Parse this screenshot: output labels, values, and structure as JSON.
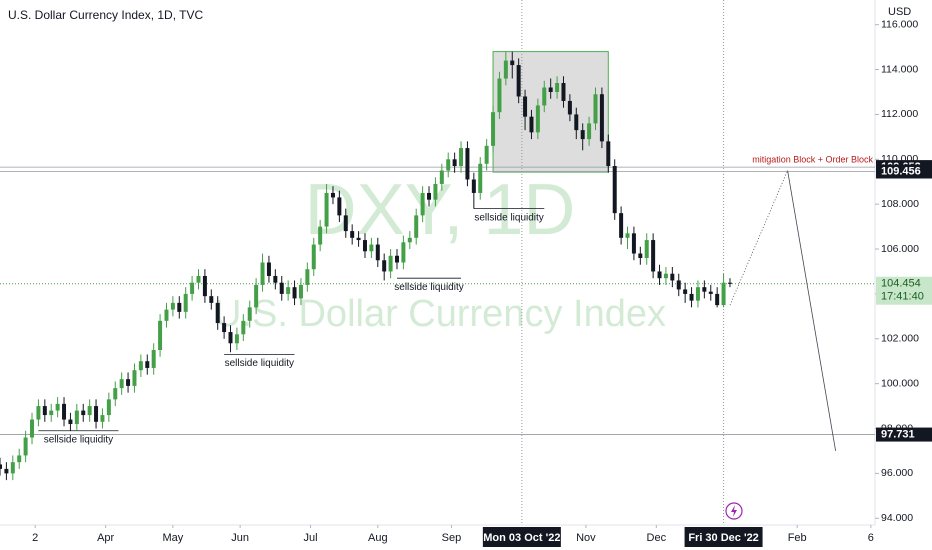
{
  "chart_data": {
    "type": "candlestick",
    "title": "U.S. Dollar Currency Index, 1D, TVC",
    "watermark": [
      "DXY, 1D",
      "U.S. Dollar Currency Index"
    ],
    "currency": "USD",
    "up_color": "#43a047",
    "down_color": "#131722",
    "x": [
      0,
      2,
      4,
      6,
      8,
      10,
      12,
      14,
      16,
      18,
      20,
      22,
      24,
      26,
      28,
      30,
      32,
      34,
      36,
      38,
      40,
      42,
      44,
      46,
      48,
      50,
      52,
      54,
      56,
      58,
      60,
      62,
      64,
      66,
      68,
      70,
      72,
      74,
      76,
      78,
      80,
      82,
      84,
      86,
      88,
      90,
      92,
      94,
      96,
      98,
      100,
      102,
      104,
      106,
      108,
      110,
      112,
      114,
      116,
      118,
      120,
      122,
      124,
      126,
      128,
      130,
      132,
      134,
      136,
      138,
      140,
      142,
      144,
      146,
      148,
      150,
      152,
      154,
      156,
      158,
      160,
      162,
      164,
      166,
      168,
      170,
      172,
      174,
      176,
      178,
      180,
      182,
      184,
      186,
      188,
      190,
      192,
      194,
      196,
      198,
      200,
      202,
      204,
      206,
      208,
      210,
      212,
      214,
      216,
      218,
      220,
      222,
      224,
      226,
      228
    ],
    "open": [
      96.4,
      96.2,
      96.0,
      96.5,
      96.8,
      97.6,
      98.4,
      99.0,
      98.6,
      98.8,
      99.1,
      98.4,
      98.2,
      98.8,
      98.6,
      99.0,
      98.3,
      98.6,
      99.3,
      99.8,
      100.2,
      99.9,
      100.6,
      101.0,
      100.7,
      101.5,
      102.8,
      103.3,
      103.6,
      103.2,
      104.0,
      104.5,
      104.8,
      103.9,
      103.6,
      102.7,
      102.3,
      101.8,
      102.2,
      102.8,
      103.4,
      104.4,
      105.4,
      104.8,
      104.5,
      104.0,
      104.3,
      103.8,
      104.4,
      105.1,
      106.2,
      107.0,
      108.5,
      108.3,
      107.5,
      106.8,
      106.5,
      106.4,
      105.9,
      106.2,
      105.5,
      105.0,
      105.7,
      105.4,
      106.3,
      106.5,
      107.5,
      108.5,
      108.2,
      108.9,
      109.5,
      110.0,
      109.7,
      110.5,
      109.1,
      108.5,
      109.8,
      110.6,
      112.1,
      113.6,
      114.4,
      114.2,
      112.8,
      111.9,
      111.2,
      112.4,
      113.2,
      113.0,
      113.4,
      112.6,
      112.0,
      111.3,
      110.9,
      111.6,
      112.9,
      110.8,
      109.7,
      107.6,
      106.5,
      106.7,
      105.8,
      105.6,
      106.4,
      105.0,
      104.7,
      104.9,
      104.6,
      104.2,
      104.0,
      103.7,
      104.3,
      104.1,
      104.0,
      103.5,
      104.5
    ],
    "high": [
      96.7,
      96.5,
      96.8,
      97.1,
      97.9,
      98.7,
      99.3,
      99.3,
      99.1,
      99.4,
      99.4,
      98.7,
      99.1,
      99.1,
      99.3,
      99.3,
      98.9,
      99.6,
      100.1,
      100.5,
      100.5,
      100.9,
      101.3,
      101.3,
      101.8,
      103.1,
      103.6,
      103.9,
      103.9,
      104.3,
      104.8,
      105.1,
      105.1,
      104.2,
      103.9,
      103.0,
      102.6,
      102.5,
      103.1,
      103.7,
      104.7,
      105.8,
      105.7,
      105.1,
      104.8,
      104.6,
      104.6,
      104.7,
      105.4,
      106.5,
      107.3,
      108.9,
      108.8,
      108.6,
      107.8,
      107.1,
      106.8,
      106.7,
      106.5,
      106.5,
      105.8,
      106.0,
      106.0,
      106.6,
      106.8,
      107.8,
      108.8,
      108.8,
      109.2,
      109.8,
      110.3,
      110.3,
      110.8,
      110.8,
      109.4,
      110.1,
      110.9,
      112.4,
      113.9,
      114.8,
      114.8,
      114.5,
      113.1,
      112.2,
      112.7,
      113.5,
      113.6,
      113.7,
      113.7,
      112.9,
      112.3,
      111.6,
      111.9,
      113.2,
      113.2,
      111.1,
      110.0,
      107.9,
      107.0,
      107.0,
      106.1,
      106.7,
      106.7,
      105.3,
      105.2,
      105.2,
      104.9,
      104.5,
      104.3,
      104.6,
      104.6,
      104.4,
      104.3,
      104.9,
      104.7
    ],
    "low": [
      95.9,
      95.7,
      95.7,
      96.2,
      96.5,
      97.3,
      98.1,
      98.3,
      98.3,
      98.5,
      98.1,
      97.9,
      97.9,
      98.3,
      98.3,
      98.0,
      98.0,
      98.3,
      99.0,
      99.5,
      99.6,
      99.6,
      100.3,
      100.4,
      100.4,
      101.2,
      102.5,
      103.0,
      102.9,
      102.9,
      103.7,
      104.2,
      103.6,
      103.3,
      102.4,
      102.0,
      101.4,
      101.5,
      101.9,
      102.5,
      103.1,
      104.1,
      104.5,
      104.2,
      103.7,
      103.7,
      103.5,
      103.5,
      104.1,
      104.8,
      105.9,
      106.7,
      108.0,
      107.2,
      106.5,
      106.2,
      106.1,
      105.6,
      105.6,
      105.2,
      104.6,
      104.7,
      105.1,
      105.1,
      106.0,
      106.2,
      107.2,
      107.9,
      107.9,
      108.6,
      109.2,
      109.4,
      109.4,
      108.8,
      107.8,
      108.2,
      109.5,
      110.3,
      111.8,
      113.3,
      113.6,
      112.5,
      111.3,
      110.9,
      110.9,
      112.1,
      112.7,
      112.7,
      112.3,
      111.7,
      110.9,
      110.4,
      110.6,
      111.3,
      110.5,
      109.4,
      107.3,
      106.2,
      106.0,
      105.5,
      105.3,
      105.3,
      104.7,
      104.4,
      104.4,
      104.3,
      103.9,
      103.6,
      103.4,
      103.4,
      103.8,
      103.7,
      103.4,
      103.4,
      104.3
    ],
    "close": [
      96.2,
      96.0,
      96.5,
      96.8,
      97.6,
      98.4,
      99.0,
      98.6,
      98.8,
      99.1,
      98.4,
      98.2,
      98.8,
      98.6,
      99.0,
      98.3,
      98.6,
      99.3,
      99.8,
      100.2,
      99.9,
      100.6,
      101.0,
      100.7,
      101.5,
      102.8,
      103.3,
      103.6,
      103.2,
      104.0,
      104.5,
      104.8,
      103.9,
      103.6,
      102.7,
      102.3,
      101.8,
      102.2,
      102.8,
      103.4,
      104.4,
      105.4,
      104.8,
      104.5,
      104.0,
      104.3,
      103.8,
      104.4,
      105.1,
      106.2,
      107.0,
      108.5,
      108.3,
      107.5,
      106.8,
      106.5,
      106.4,
      105.9,
      106.2,
      105.5,
      105.0,
      105.7,
      105.4,
      106.3,
      106.5,
      107.5,
      108.5,
      108.2,
      108.9,
      109.5,
      110.0,
      109.7,
      110.5,
      109.1,
      108.5,
      109.8,
      110.6,
      112.1,
      113.6,
      114.4,
      114.2,
      112.8,
      111.9,
      111.2,
      112.4,
      113.2,
      113.0,
      113.4,
      112.6,
      112.0,
      111.3,
      110.9,
      111.6,
      112.9,
      110.8,
      109.7,
      107.6,
      106.5,
      106.7,
      105.8,
      105.6,
      106.4,
      105.0,
      104.7,
      104.9,
      104.6,
      104.2,
      104.0,
      103.7,
      104.3,
      104.1,
      104.0,
      103.5,
      104.5,
      104.45
    ],
    "xlim": [
      0,
      273.3
    ],
    "xticks": [
      {
        "value": 11,
        "label": "2"
      },
      {
        "value": 33,
        "label": "Apr"
      },
      {
        "value": 54,
        "label": "May"
      },
      {
        "value": 75,
        "label": "Jun"
      },
      {
        "value": 97,
        "label": "Jul"
      },
      {
        "value": 118,
        "label": "Aug"
      },
      {
        "value": 141,
        "label": "Sep"
      },
      {
        "value": 163,
        "label": "Mon 03 Oct '22"
      },
      {
        "value": 183,
        "label": "Nov"
      },
      {
        "value": 205,
        "label": "Dec"
      },
      {
        "value": 226,
        "label": "Fri 30 Dec '22"
      },
      {
        "value": 249,
        "label": "Feb"
      },
      {
        "value": 272,
        "label": "6"
      }
    ],
    "ylim": [
      93.7,
      117.1
    ],
    "yticks": [
      {
        "value": 94,
        "label": "94.000"
      },
      {
        "value": 96,
        "label": "96.000"
      },
      {
        "value": 98,
        "label": "98.000"
      },
      {
        "value": 100,
        "label": "100.000"
      },
      {
        "value": 102,
        "label": "102.000"
      },
      {
        "value": 104,
        "label": "104.000"
      },
      {
        "value": 106,
        "label": "106.000"
      },
      {
        "value": 108,
        "label": "108.000"
      },
      {
        "value": 110,
        "label": "110.000"
      },
      {
        "value": 112,
        "label": "112.000"
      },
      {
        "value": 114,
        "label": "114.000"
      },
      {
        "value": 116,
        "label": "116.000"
      }
    ],
    "vlines": [
      163,
      226
    ],
    "price_lines": [
      109.652,
      109.456,
      97.731
    ],
    "mitigation_label": "mitigation Block + Order Block",
    "last_price": 104.454,
    "countdown": "17:41:40",
    "box": {
      "x": [
        154,
        190
      ],
      "y": [
        109.43,
        114.8
      ],
      "color": "#4caf50"
    },
    "annotations": [
      {
        "text": "sellside liquidity",
        "x": [
          12,
          37
        ],
        "y": 97.9
      },
      {
        "text": "sellside liquidity",
        "x": [
          70,
          92
        ],
        "y": 101.3
      },
      {
        "text": "sellside liquidity",
        "x": [
          124,
          144
        ],
        "y": 104.7
      },
      {
        "text": "sellside liquidity",
        "x": [
          148,
          170
        ],
        "y": 107.8
      }
    ],
    "projection": {
      "x": [
        228,
        246,
        261
      ],
      "y": [
        103.5,
        109.5,
        97.0
      ]
    }
  }
}
